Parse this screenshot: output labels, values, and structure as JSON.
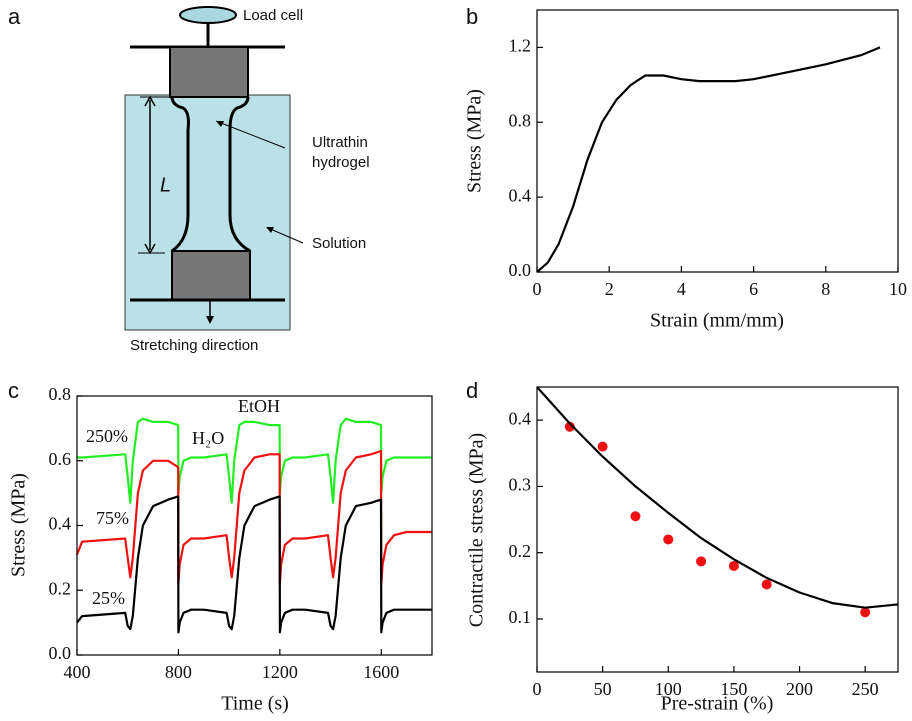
{
  "diagram": {
    "label": "a",
    "load_cell": "Load cell",
    "hydrogel": [
      "Ultrathin",
      "hydrogel"
    ],
    "length": "L",
    "solution": "Solution",
    "direction": "Stretching direction"
  },
  "chart_data": [
    {
      "type": "line",
      "label": "b",
      "x_label": "Strain (mm/mm)",
      "y_label": "Stress (MPa)",
      "xlim": [
        0,
        10
      ],
      "xticks": [
        0,
        2,
        4,
        6,
        8,
        10
      ],
      "ylim": [
        0,
        1.4
      ],
      "yticks": [
        {
          "value": 0,
          "label": "0.0"
        },
        0.4,
        0.8,
        1.2
      ],
      "series": [
        {
          "color": "#000000",
          "x": [
            0,
            0.3,
            0.6,
            1,
            1.4,
            1.8,
            2.2,
            2.6,
            3,
            3.5,
            4,
            4.5,
            5,
            5.5,
            6,
            7,
            8,
            9,
            9.5
          ],
          "values": [
            0,
            0.05,
            0.15,
            0.35,
            0.6,
            0.8,
            0.92,
            1.0,
            1.05,
            1.05,
            1.03,
            1.02,
            1.02,
            1.02,
            1.03,
            1.07,
            1.11,
            1.16,
            1.2
          ]
        }
      ]
    },
    {
      "type": "line",
      "label": "c",
      "x_label": "Time (s)",
      "y_label": "Stress (MPa)",
      "xlim": [
        400,
        1800
      ],
      "xticks": [
        400,
        800,
        1200,
        1600
      ],
      "ylim": [
        0,
        0.8
      ],
      "yticks": [
        {
          "value": 0,
          "label": "0.0"
        },
        0.2,
        0.4,
        0.6,
        0.8
      ],
      "annotations": [
        "H₂O",
        "EtOH"
      ],
      "x": [
        400,
        420,
        590,
        600,
        610,
        620,
        640,
        660,
        700,
        760,
        799,
        800,
        805,
        820,
        850,
        900,
        990,
        1000,
        1010,
        1020,
        1040,
        1060,
        1100,
        1160,
        1199,
        1200,
        1205,
        1220,
        1250,
        1300,
        1390,
        1400,
        1410,
        1420,
        1440,
        1460,
        1500,
        1560,
        1599,
        1600,
        1605,
        1620,
        1650,
        1700,
        1800
      ],
      "series": [
        {
          "name": "250%",
          "color": "#22ee22",
          "values": [
            0.61,
            0.61,
            0.62,
            0.55,
            0.47,
            0.6,
            0.72,
            0.73,
            0.72,
            0.72,
            0.71,
            0.5,
            0.55,
            0.6,
            0.61,
            0.61,
            0.62,
            0.55,
            0.47,
            0.6,
            0.71,
            0.72,
            0.72,
            0.71,
            0.71,
            0.5,
            0.55,
            0.6,
            0.61,
            0.61,
            0.62,
            0.55,
            0.47,
            0.6,
            0.71,
            0.73,
            0.72,
            0.72,
            0.71,
            0.5,
            0.55,
            0.6,
            0.61,
            0.61,
            0.61
          ]
        },
        {
          "name": "75%",
          "color": "#ee1111",
          "values": [
            0.31,
            0.35,
            0.36,
            0.3,
            0.24,
            0.3,
            0.5,
            0.57,
            0.6,
            0.6,
            0.58,
            0.22,
            0.28,
            0.34,
            0.36,
            0.36,
            0.37,
            0.3,
            0.24,
            0.3,
            0.5,
            0.57,
            0.61,
            0.62,
            0.62,
            0.22,
            0.28,
            0.34,
            0.36,
            0.36,
            0.37,
            0.3,
            0.24,
            0.3,
            0.5,
            0.57,
            0.61,
            0.62,
            0.63,
            0.22,
            0.28,
            0.34,
            0.37,
            0.38,
            0.38
          ]
        },
        {
          "name": "25%",
          "color": "#000000",
          "values": [
            0.1,
            0.12,
            0.13,
            0.09,
            0.08,
            0.12,
            0.3,
            0.4,
            0.46,
            0.48,
            0.49,
            0.07,
            0.1,
            0.13,
            0.14,
            0.14,
            0.13,
            0.09,
            0.08,
            0.12,
            0.3,
            0.4,
            0.46,
            0.48,
            0.49,
            0.07,
            0.1,
            0.13,
            0.14,
            0.14,
            0.13,
            0.09,
            0.08,
            0.12,
            0.3,
            0.4,
            0.46,
            0.47,
            0.48,
            0.07,
            0.1,
            0.13,
            0.14,
            0.14,
            0.14
          ]
        }
      ]
    },
    {
      "type": "scatter",
      "label": "d",
      "x_label": "Pre-strain (%)",
      "y_label": "Contractile stress (MPa)",
      "xlim": [
        0,
        275
      ],
      "xticks": [
        0,
        50,
        100,
        150,
        200,
        250
      ],
      "ylim": [
        0.02,
        0.45
      ],
      "yticks": [
        0.1,
        0.2,
        0.3,
        0.4
      ],
      "series": [
        {
          "mode": "markers",
          "color": "#ee1111",
          "x": [
            25,
            50,
            75,
            100,
            125,
            150,
            175,
            250
          ],
          "values": [
            0.39,
            0.36,
            0.255,
            0.22,
            0.187,
            0.18,
            0.152,
            0.11
          ]
        },
        {
          "mode": "lines",
          "color": "#000000",
          "x": [
            0,
            25,
            50,
            75,
            100,
            125,
            150,
            175,
            200,
            225,
            250,
            275
          ],
          "values": [
            0.45,
            0.395,
            0.345,
            0.3,
            0.26,
            0.222,
            0.19,
            0.162,
            0.14,
            0.124,
            0.117,
            0.122
          ]
        }
      ]
    }
  ]
}
